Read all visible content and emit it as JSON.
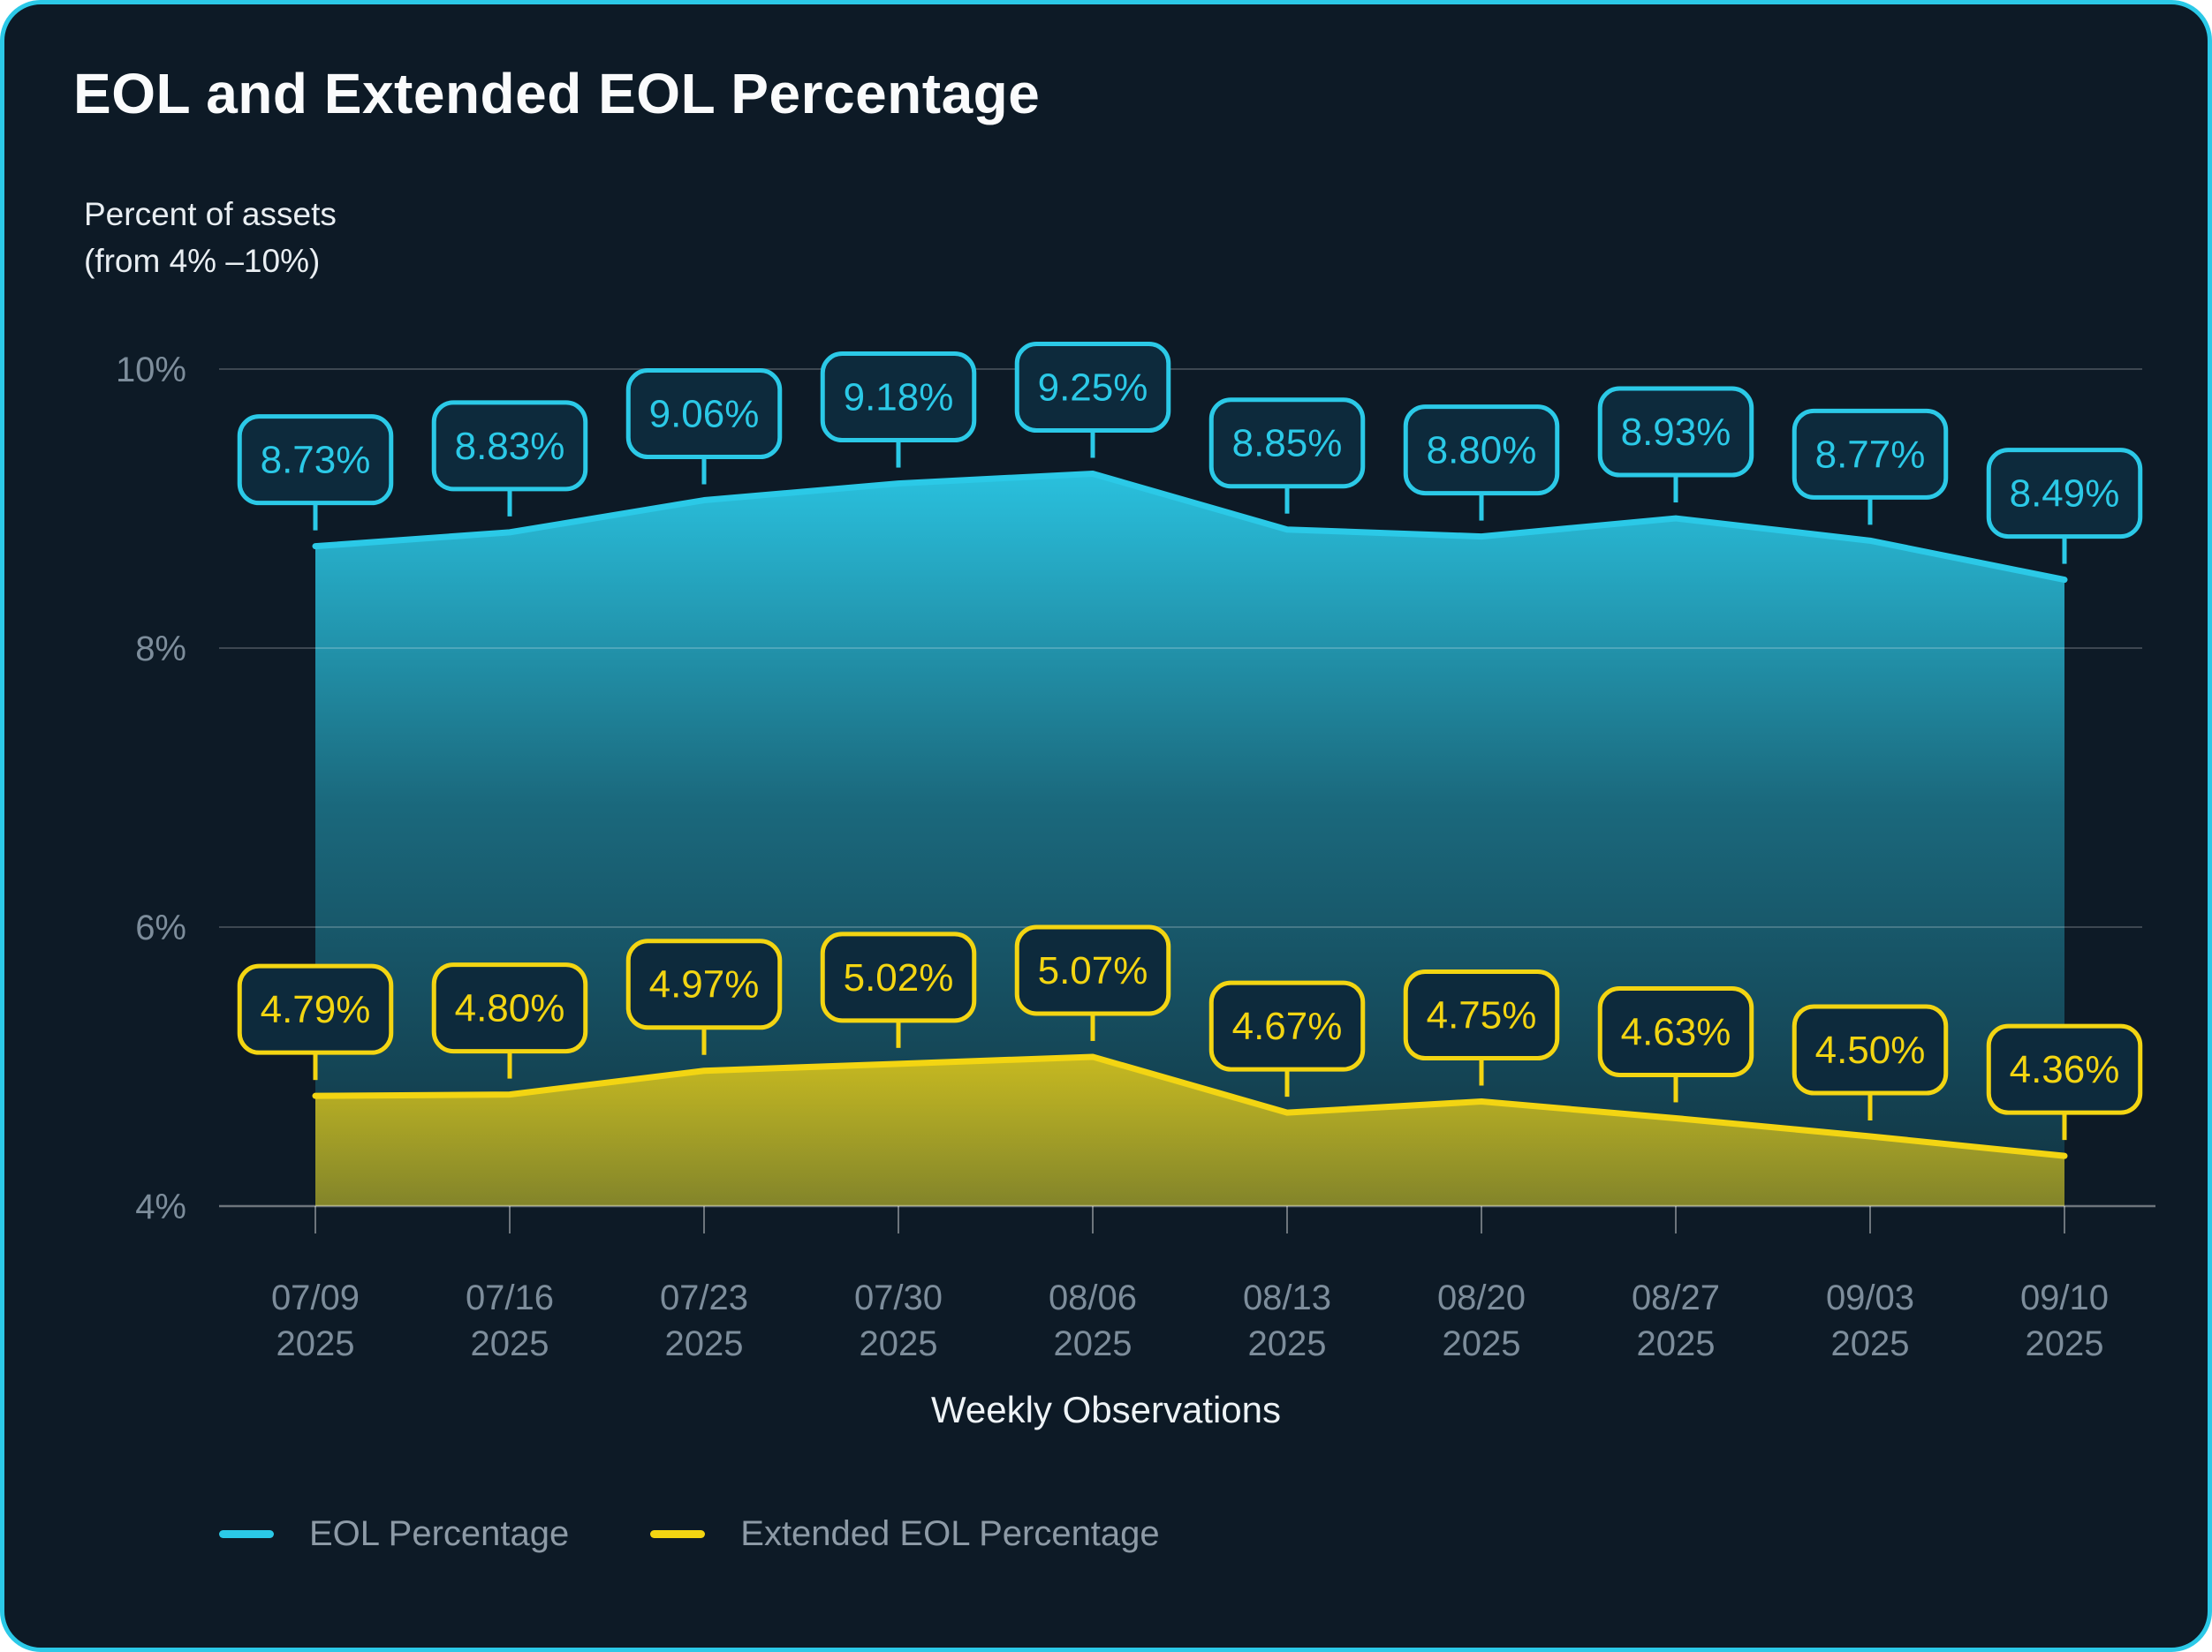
{
  "theme": {
    "card_background": "#0d1a26",
    "card_border": "#2bc9e7",
    "callout_fill": "#0d2a3c",
    "grid_color": "rgba(255,255,255,0.20)",
    "axis_color": "rgba(255,255,255,0.40)",
    "tick_label_color": "#7d8d9b"
  },
  "header": {
    "title": "EOL and Extended EOL Percentage",
    "y_axis_caption_line1": "Percent of assets",
    "y_axis_caption_line2": "(from 4% –10%)"
  },
  "chart_data": {
    "type": "area",
    "title": "EOL and Extended EOL Percentage",
    "xlabel": "Weekly Observations",
    "ylabel": "Percent of assets (from 4% –10%)",
    "ylim": [
      4,
      10
    ],
    "grid": true,
    "legend_position": "bottom-left",
    "categories": [
      {
        "line1": "07/09",
        "line2": "2025"
      },
      {
        "line1": "07/16",
        "line2": "2025"
      },
      {
        "line1": "07/23",
        "line2": "2025"
      },
      {
        "line1": "07/30",
        "line2": "2025"
      },
      {
        "line1": "08/06",
        "line2": "2025"
      },
      {
        "line1": "08/13",
        "line2": "2025"
      },
      {
        "line1": "08/20",
        "line2": "2025"
      },
      {
        "line1": "08/27",
        "line2": "2025"
      },
      {
        "line1": "09/03",
        "line2": "2025"
      },
      {
        "line1": "09/10",
        "line2": "2025"
      }
    ],
    "yticks": [
      {
        "value": 10,
        "label": "10%"
      },
      {
        "value": 8,
        "label": "8%"
      },
      {
        "value": 6,
        "label": "6%"
      },
      {
        "value": 4,
        "label": "4%"
      }
    ],
    "series": [
      {
        "name": "EOL Percentage",
        "color": "#2bc9e7",
        "values": [
          8.73,
          8.83,
          9.06,
          9.18,
          9.25,
          8.85,
          8.8,
          8.93,
          8.77,
          8.49
        ],
        "labels": [
          "8.73%",
          "8.83%",
          "9.06%",
          "9.18%",
          "9.25%",
          "8.85%",
          "8.80%",
          "8.93%",
          "8.77%",
          "8.49%"
        ]
      },
      {
        "name": "Extended EOL Percentage",
        "color": "#f3d512",
        "values": [
          4.79,
          4.8,
          4.97,
          5.02,
          5.07,
          4.67,
          4.75,
          4.63,
          4.5,
          4.36
        ],
        "labels": [
          "4.79%",
          "4.80%",
          "4.97%",
          "5.02%",
          "5.07%",
          "4.67%",
          "4.75%",
          "4.63%",
          "4.50%",
          "4.36%"
        ]
      }
    ]
  }
}
